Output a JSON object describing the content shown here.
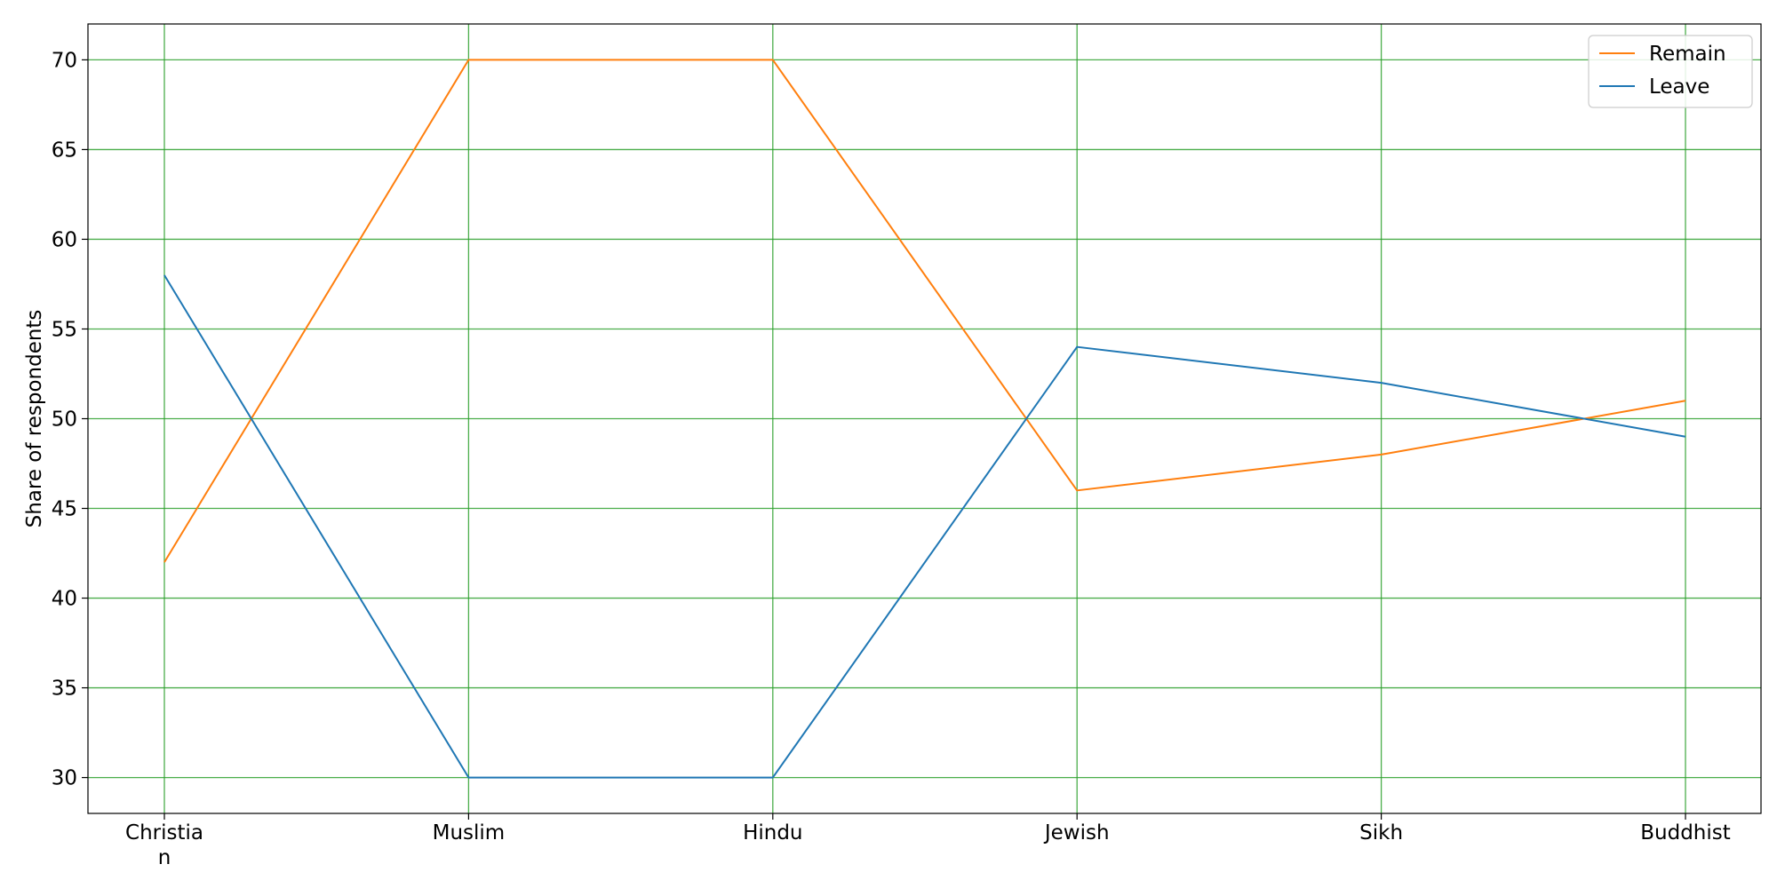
{
  "chart_data": {
    "type": "line",
    "title": "",
    "xlabel": "",
    "ylabel": "Share of respondents",
    "categories": [
      "Christian",
      "Muslim",
      "Hindu",
      "Jewish",
      "Sikh",
      "Buddhist"
    ],
    "category_tick_lines": [
      [
        "Christia",
        "n"
      ],
      [
        "Muslim"
      ],
      [
        "Hindu"
      ],
      [
        "Jewish"
      ],
      [
        "Sikh"
      ],
      [
        "Buddhist"
      ]
    ],
    "series": [
      {
        "name": "Remain",
        "color": "#ff7f0e",
        "values": [
          42,
          70,
          70,
          46,
          48,
          51
        ]
      },
      {
        "name": "Leave",
        "color": "#1f77b4",
        "values": [
          58,
          30,
          30,
          54,
          52,
          49
        ]
      }
    ],
    "ylim": [
      28,
      72
    ],
    "yticks": [
      30,
      35,
      40,
      45,
      50,
      55,
      60,
      65,
      70
    ],
    "grid": true,
    "grid_color": "#2ca02c",
    "legend_position": "top-right"
  }
}
